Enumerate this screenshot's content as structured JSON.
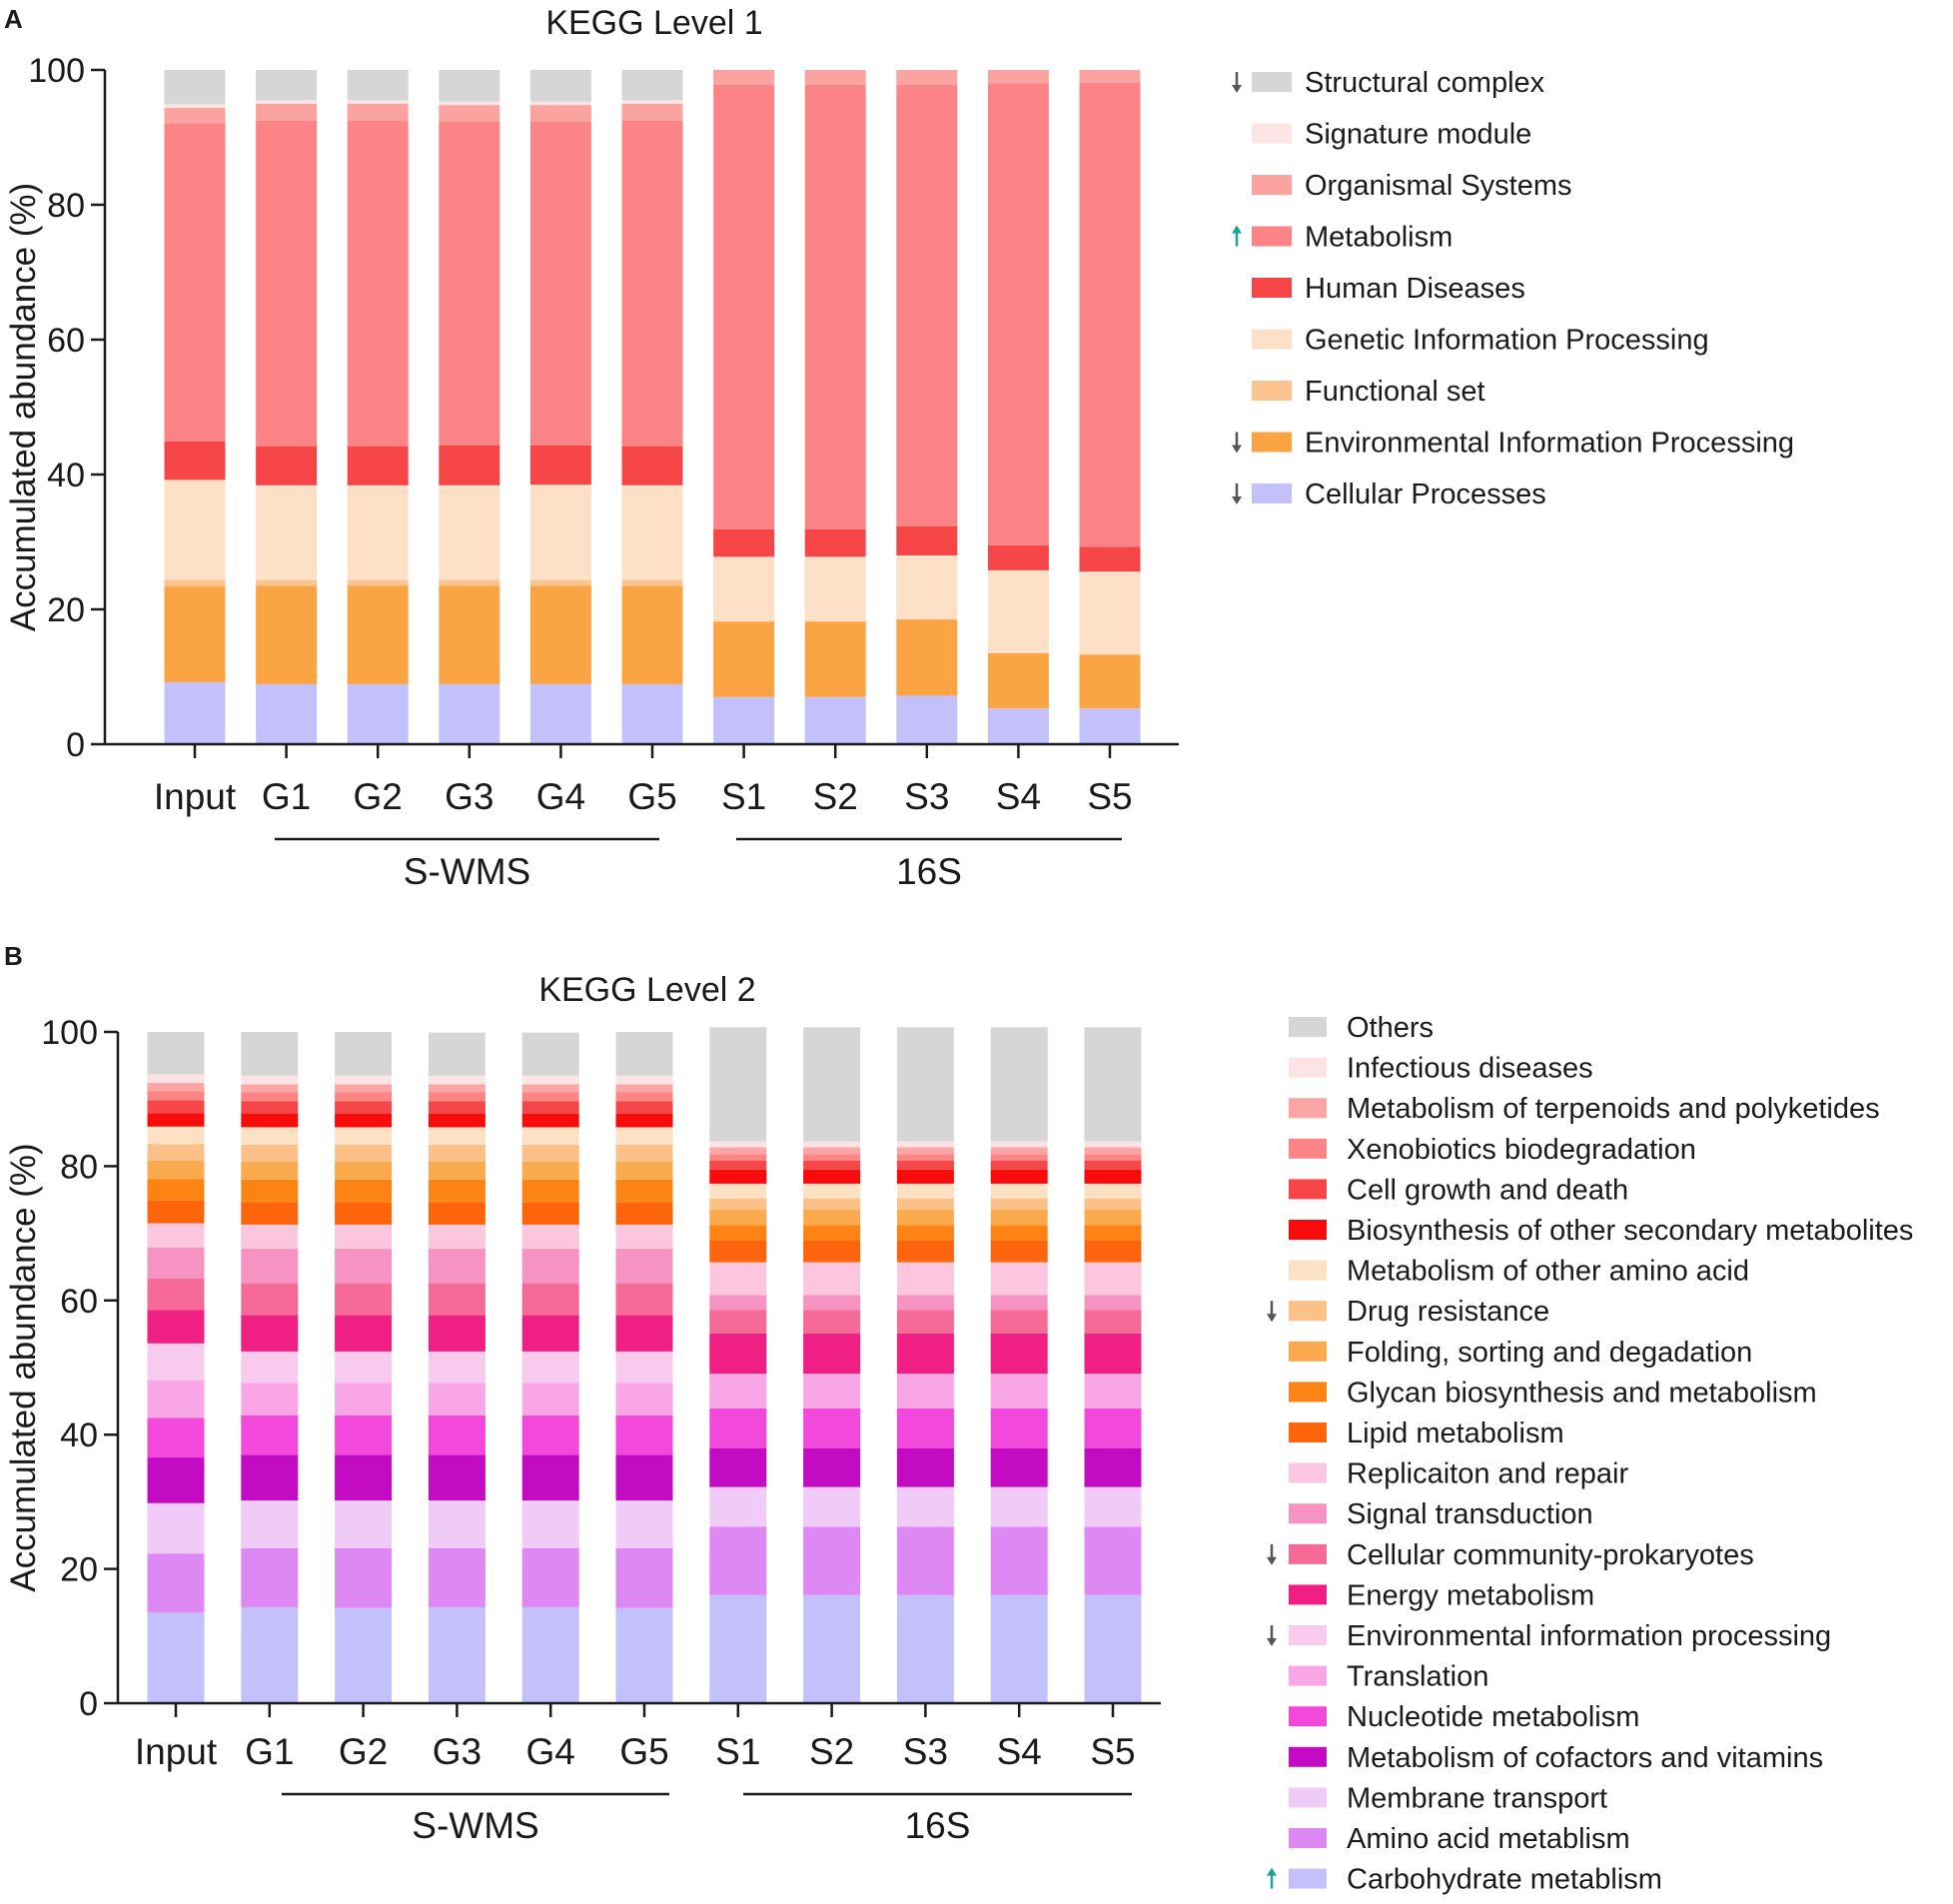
{
  "figure": {
    "background": "#ffffff"
  },
  "panels": [
    {
      "panel_label": "A",
      "arrow_colors": {
        "down": "#555555",
        "up": "#1aa39a"
      },
      "groups": [
        {
          "label": "S-WMS"
        },
        {
          "label": "16S"
        }
      ]
    },
    {
      "panel_label": "B",
      "arrow_colors": {
        "down": "#555555",
        "up": "#1aa39a"
      },
      "groups": [
        {
          "label": "S-WMS"
        },
        {
          "label": "16S"
        }
      ]
    }
  ],
  "chart_data": [
    {
      "type": "bar",
      "stacked": true,
      "title": "KEGG Level 1",
      "xlabel": "",
      "ylabel": "Accumulated abundance (%)",
      "ylim": [
        0,
        100
      ],
      "yticks": [
        0,
        20,
        40,
        60,
        80,
        100
      ],
      "grid": false,
      "legend_position": "right",
      "categories": [
        "Input",
        "G1",
        "G2",
        "G3",
        "G4",
        "G5",
        "S1",
        "S2",
        "S3",
        "S4",
        "S5"
      ],
      "series": [
        {
          "name": "Cellular Processes",
          "color": "#c3c0fb",
          "arrow": "down",
          "values": [
            9.2,
            8.9,
            8.9,
            8.9,
            8.9,
            8.9,
            7.0,
            7.0,
            7.2,
            5.3,
            5.3
          ]
        },
        {
          "name": "Environmental Information Processing",
          "color": "#fba444",
          "arrow": "down",
          "values": [
            14.2,
            14.6,
            14.6,
            14.6,
            14.6,
            14.6,
            11.2,
            11.2,
            11.3,
            8.2,
            8.0
          ]
        },
        {
          "name": "Functional set",
          "color": "#fcc38e",
          "arrow": "",
          "values": [
            1.0,
            0.8,
            0.8,
            0.8,
            0.8,
            0.8,
            0,
            0,
            0,
            0,
            0
          ]
        },
        {
          "name": "Genetic Information Processing",
          "color": "#fde0c5",
          "arrow": "",
          "values": [
            14.8,
            14.1,
            14.1,
            14.1,
            14.2,
            14.1,
            9.6,
            9.6,
            9.5,
            12.3,
            12.3
          ]
        },
        {
          "name": "Human Diseases",
          "color": "#f74648",
          "arrow": "",
          "values": [
            5.7,
            5.8,
            5.8,
            5.9,
            5.8,
            5.8,
            4.1,
            4.1,
            4.3,
            3.7,
            3.7
          ]
        },
        {
          "name": "Metabolism",
          "color": "#fd8486",
          "arrow": "up",
          "values": [
            47.2,
            48.3,
            48.3,
            48.0,
            48.0,
            48.3,
            65.9,
            65.9,
            65.5,
            68.5,
            68.8
          ]
        },
        {
          "name": "Organismal Systems",
          "color": "#fba3a1",
          "arrow": "",
          "values": [
            2.3,
            2.5,
            2.5,
            2.5,
            2.5,
            2.5,
            2.2,
            2.2,
            2.2,
            2.0,
            1.9
          ]
        },
        {
          "name": "Signature module",
          "color": "#fde5e5",
          "arrow": "",
          "values": [
            0.5,
            0.5,
            0.5,
            0.5,
            0.5,
            0.5,
            0,
            0,
            0,
            0,
            0
          ]
        },
        {
          "name": "Structural complex",
          "color": "#d6d6d6",
          "arrow": "down",
          "values": [
            5.1,
            4.5,
            4.5,
            4.7,
            4.7,
            4.5,
            0,
            0,
            0,
            0,
            0
          ]
        }
      ],
      "category_groups": [
        {
          "label": "S-WMS",
          "start": "G1",
          "end": "G5"
        },
        {
          "label": "16S",
          "start": "S1",
          "end": "S5"
        }
      ]
    },
    {
      "type": "bar",
      "stacked": true,
      "title": "KEGG Level 2",
      "xlabel": "",
      "ylabel": "Accumulated abundance (%)",
      "ylim": [
        0,
        100
      ],
      "yticks": [
        0,
        20,
        40,
        60,
        80,
        100
      ],
      "grid": false,
      "legend_position": "right",
      "categories": [
        "Input",
        "G1",
        "G2",
        "G3",
        "G4",
        "G5",
        "S1",
        "S2",
        "S3",
        "S4",
        "S5"
      ],
      "series": [
        {
          "name": "Carbohydrate metablism",
          "color": "#c3c0fb",
          "arrow": "up",
          "values": [
            13.5,
            14.3,
            14.2,
            14.3,
            14.3,
            14.2,
            16.1,
            16.1,
            16.1,
            16.1,
            16.1
          ]
        },
        {
          "name": "Amino acid metablism",
          "color": "#de89f3",
          "arrow": "",
          "values": [
            8.8,
            8.8,
            8.9,
            8.8,
            8.8,
            8.9,
            10.2,
            10.2,
            10.2,
            10.2,
            10.2
          ]
        },
        {
          "name": "Membrane transport",
          "color": "#f0cbf8",
          "arrow": "",
          "values": [
            7.5,
            7.1,
            7.1,
            7.1,
            7.1,
            7.1,
            5.9,
            5.9,
            5.9,
            5.9,
            5.9
          ]
        },
        {
          "name": "Metabolism of cofactors and vitamins",
          "color": "#c30bc3",
          "arrow": "",
          "values": [
            6.8,
            6.8,
            6.8,
            6.8,
            6.8,
            6.8,
            5.8,
            5.8,
            5.8,
            5.8,
            5.8
          ]
        },
        {
          "name": "Nucleotide metabolism",
          "color": "#f348dc",
          "arrow": "",
          "values": [
            5.9,
            5.9,
            5.9,
            5.9,
            5.9,
            5.9,
            5.9,
            5.9,
            5.9,
            5.9,
            5.9
          ]
        },
        {
          "name": "Translation",
          "color": "#f8a6e6",
          "arrow": "",
          "values": [
            5.6,
            4.8,
            4.8,
            4.8,
            4.8,
            4.8,
            5.2,
            5.2,
            5.2,
            5.2,
            5.2
          ]
        },
        {
          "name": "Environmental information processing",
          "color": "#f8cbee",
          "arrow": "down",
          "values": [
            5.5,
            4.7,
            4.7,
            4.7,
            4.7,
            4.7,
            0,
            0,
            0,
            0,
            0
          ]
        },
        {
          "name": "Energy metabolism",
          "color": "#f01f83",
          "arrow": "",
          "values": [
            5.0,
            5.4,
            5.4,
            5.4,
            5.4,
            5.4,
            6.0,
            6.0,
            6.0,
            6.0,
            6.0
          ]
        },
        {
          "name": "Cellular community-prokaryotes",
          "color": "#f66a98",
          "arrow": "down",
          "values": [
            4.7,
            4.7,
            4.7,
            4.7,
            4.7,
            4.7,
            3.5,
            3.5,
            3.5,
            3.5,
            3.5
          ]
        },
        {
          "name": "Signal transduction",
          "color": "#f693c2",
          "arrow": "",
          "values": [
            4.6,
            5.2,
            5.2,
            5.2,
            5.2,
            5.2,
            2.2,
            2.2,
            2.2,
            2.2,
            2.2
          ]
        },
        {
          "name": "Replicaiton and repair",
          "color": "#fbc6de",
          "arrow": "",
          "values": [
            3.6,
            3.6,
            3.6,
            3.6,
            3.6,
            3.6,
            4.9,
            4.9,
            4.9,
            4.9,
            4.9
          ]
        },
        {
          "name": "Lipid metabolism",
          "color": "#fd650c",
          "arrow": "",
          "values": [
            3.4,
            3.3,
            3.3,
            3.3,
            3.3,
            3.3,
            3.2,
            3.2,
            3.2,
            3.2,
            3.2
          ]
        },
        {
          "name": "Glycan biosynthesis and metabolism",
          "color": "#fc8314",
          "arrow": "",
          "values": [
            3.2,
            3.4,
            3.4,
            3.4,
            3.4,
            3.4,
            2.3,
            2.3,
            2.3,
            2.3,
            2.3
          ]
        },
        {
          "name": "Folding, sorting and degadation",
          "color": "#fbaa4e",
          "arrow": "",
          "values": [
            2.7,
            2.7,
            2.7,
            2.7,
            2.7,
            2.7,
            2.3,
            2.3,
            2.3,
            2.3,
            2.3
          ]
        },
        {
          "name": "Drug resistance",
          "color": "#fcc188",
          "arrow": "down",
          "values": [
            2.5,
            2.5,
            2.5,
            2.5,
            2.5,
            2.5,
            1.7,
            1.7,
            1.7,
            1.7,
            1.7
          ]
        },
        {
          "name": "Metabolism of other amino acid",
          "color": "#fde1c4",
          "arrow": "",
          "values": [
            2.6,
            2.6,
            2.6,
            2.6,
            2.6,
            2.6,
            2.2,
            2.2,
            2.2,
            2.2,
            2.2
          ]
        },
        {
          "name": "Biosynthesis of other secondary metabolites",
          "color": "#f80b0b",
          "arrow": "",
          "values": [
            2.0,
            2.0,
            2.0,
            2.0,
            2.0,
            2.0,
            2.1,
            2.1,
            2.1,
            2.1,
            2.1
          ]
        },
        {
          "name": "Cell growth and death",
          "color": "#f74648",
          "arrow": "",
          "values": [
            1.9,
            1.9,
            1.9,
            1.9,
            1.9,
            1.9,
            1.3,
            1.3,
            1.3,
            1.3,
            1.3
          ]
        },
        {
          "name": "Xenobiotics biodegradation",
          "color": "#fb8585",
          "arrow": "",
          "values": [
            1.4,
            1.3,
            1.3,
            1.3,
            1.3,
            1.3,
            1.0,
            1.0,
            1.0,
            1.0,
            1.0
          ]
        },
        {
          "name": "Metabolism of terpenoids and polyketides",
          "color": "#fba5a5",
          "arrow": "",
          "values": [
            1.2,
            1.2,
            1.2,
            1.2,
            1.2,
            1.2,
            1.0,
            1.0,
            1.0,
            1.0,
            1.0
          ]
        },
        {
          "name": "Infectious diseases",
          "color": "#fde3e3",
          "arrow": "",
          "values": [
            1.3,
            1.3,
            1.3,
            1.3,
            1.3,
            1.3,
            0.9,
            0.9,
            0.9,
            0.9,
            0.9
          ]
        },
        {
          "name": "Others",
          "color": "#d6d6d6",
          "arrow": "",
          "values": [
            6.3,
            6.5,
            6.5,
            6.4,
            6.4,
            6.5,
            17.0,
            17.0,
            17.0,
            17.0,
            17.0
          ]
        }
      ],
      "category_groups": [
        {
          "label": "S-WMS",
          "start": "G1",
          "end": "G5"
        },
        {
          "label": "16S",
          "start": "S1",
          "end": "S5"
        }
      ]
    }
  ]
}
